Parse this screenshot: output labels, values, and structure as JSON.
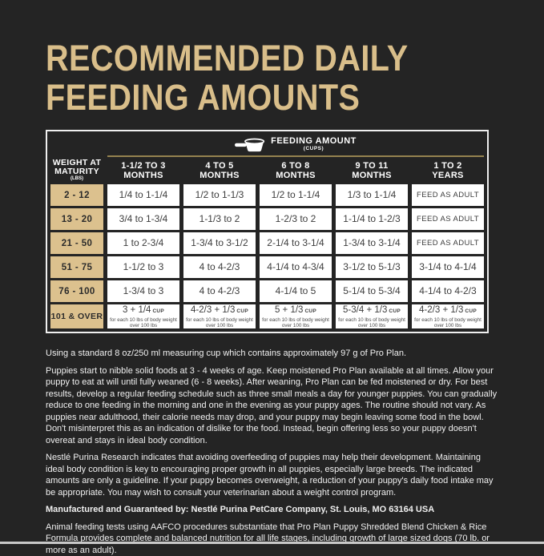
{
  "title": {
    "line1": "RECOMMENDED DAILY",
    "line2": "FEEDING AMOUNTS"
  },
  "table": {
    "feeding_amount_label": "FEEDING AMOUNT",
    "feeding_amount_sub": "(CUPS)",
    "cup_icon": "measuring-cup-icon",
    "corner_header": {
      "title_line1": "WEIGHT AT",
      "title_line2": "MATURITY",
      "sub": "(LBS)"
    },
    "columns": [
      {
        "range": "1-1/2 TO 3",
        "unit": "MONTHS"
      },
      {
        "range": "4 TO 5",
        "unit": "MONTHS"
      },
      {
        "range": "6 TO 8",
        "unit": "MONTHS"
      },
      {
        "range": "9 TO 11",
        "unit": "MONTHS"
      },
      {
        "range": "1 TO 2",
        "unit": "YEARS"
      }
    ],
    "rows": [
      {
        "weight": "2 - 12",
        "cells": [
          {
            "text": "1/4 to 1-1/4"
          },
          {
            "text": "1/2 to 1-1/3"
          },
          {
            "text": "1/2 to 1-1/4"
          },
          {
            "text": "1/3 to 1-1/4"
          },
          {
            "text": "FEED AS ADULT",
            "adult": true
          }
        ]
      },
      {
        "weight": "13 - 20",
        "cells": [
          {
            "text": "3/4 to 1-3/4"
          },
          {
            "text": "1-1/3 to 2"
          },
          {
            "text": "1-2/3 to 2"
          },
          {
            "text": "1-1/4 to 1-2/3"
          },
          {
            "text": "FEED AS ADULT",
            "adult": true
          }
        ]
      },
      {
        "weight": "21 - 50",
        "cells": [
          {
            "text": "1 to 2-3/4"
          },
          {
            "text": "1-3/4 to 3-1/2"
          },
          {
            "text": "2-1/4 to 3-1/4"
          },
          {
            "text": "1-3/4 to 3-1/4"
          },
          {
            "text": "FEED AS ADULT",
            "adult": true
          }
        ]
      },
      {
        "weight": "51 - 75",
        "cells": [
          {
            "text": "1-1/2 to 3"
          },
          {
            "text": "4 to 4-2/3"
          },
          {
            "text": "4-1/4 to 4-3/4"
          },
          {
            "text": "3-1/2 to 5-1/3"
          },
          {
            "text": "3-1/4 to 4-1/4"
          }
        ]
      },
      {
        "weight": "76 - 100",
        "cells": [
          {
            "text": "1-3/4 to 3"
          },
          {
            "text": "4 to 4-2/3"
          },
          {
            "text": "4-1/4 to 5"
          },
          {
            "text": "5-1/4 to 5-3/4"
          },
          {
            "text": "4-1/4 to 4-2/3"
          }
        ]
      },
      {
        "weight": "101 & OVER",
        "cells": [
          {
            "text": "3 + 1/4",
            "unit": "CUP",
            "note": "for each 10 lbs of body weight over 100 lbs"
          },
          {
            "text": "4-2/3 + 1/3",
            "unit": "CUP",
            "note": "for each 10 lbs of body weight over 100 lbs"
          },
          {
            "text": "5 + 1/3",
            "unit": "CUP",
            "note": "for each 10 lbs of body weight over 100 lbs"
          },
          {
            "text": "5-3/4 + 1/3",
            "unit": "CUP",
            "note": "for each 10 lbs of body weight over 100 lbs"
          },
          {
            "text": "4-2/3 + 1/3",
            "unit": "CUP",
            "note": "for each 10 lbs of body weight over 100 lbs"
          }
        ]
      }
    ]
  },
  "content": {
    "paragraphs": [
      "Using a standard 8 oz/250 ml measuring cup which contains approximately 97 g of Pro Plan.",
      "Puppies start to nibble solid foods at 3 - 4 weeks of age. Keep moistened Pro Plan available at all times. Allow your puppy to eat at will until fully weaned (6 - 8 weeks). After weaning, Pro Plan can be fed moistened or dry. For best results, develop a regular feeding schedule such as three small meals a day for younger puppies. You can gradually reduce to one feeding in the morning and one in the evening as your puppy ages. The routine should not vary. As puppies near adulthood, their calorie needs may drop, and your puppy may begin leaving some food in the bowl. Don't misinterpret this as an indication of dislike for the food. Instead, begin offering less so your puppy doesn't overeat and stays in ideal body condition.",
      "Nestlé Purina Research indicates that avoiding overfeeding of puppies may help their development. Maintaining ideal body condition is key to encouraging proper growth in all puppies, especially large breeds. The indicated amounts are only a guideline. If your puppy becomes overweight, a reduction of your puppy's daily food intake may be appropriate. You may wish to consult your veterinarian about a weight control program.",
      "Manufactured and Guaranteed by: Nestlé Purina PetCare Company, St. Louis, MO 63164 USA",
      "Animal feeding tests using AAFCO procedures substantiate that Pro Plan Puppy Shredded Blend Chicken & Rice Formula provides complete and balanced nutrition for all life stages, including growth of large sized dogs (70 lb. or more as an adult)."
    ]
  },
  "colors": {
    "background": "#242424",
    "accent_gold": "#d9be8a",
    "line_gold": "#94824f",
    "weight_cell_tan": "#dcc18e",
    "cell_white": "#ffffff"
  }
}
